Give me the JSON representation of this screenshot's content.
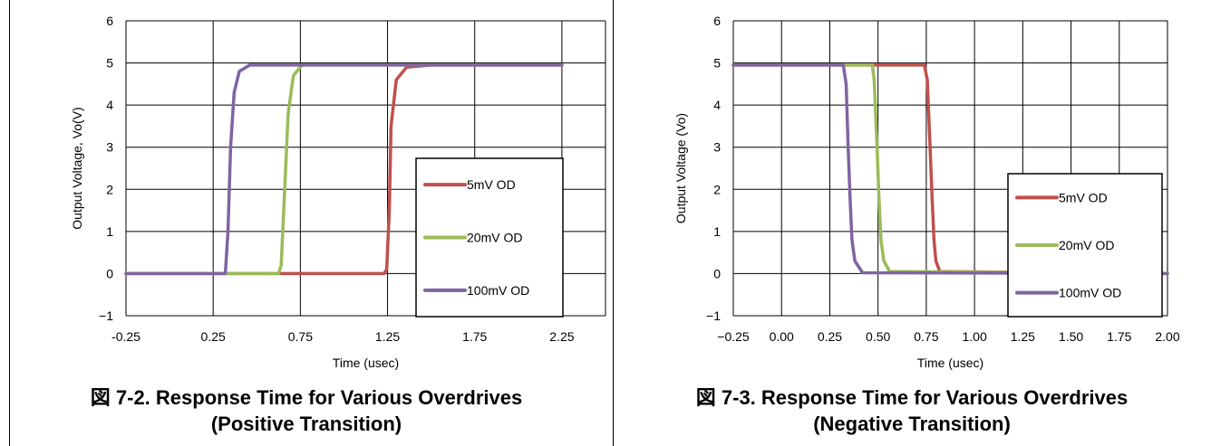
{
  "colors": {
    "series_5mV": "#c0504d",
    "series_20mV": "#9bbb59",
    "series_100mV": "#8064a2",
    "grid": "#000000"
  },
  "chart_data": [
    {
      "type": "line",
      "caption_line1": "図 7-2. Response Time for Various Overdrives",
      "caption_line2": "(Positive Transition)",
      "xlabel": "Time (usec)",
      "ylabel": "Output Voltage, Vo(V)",
      "xlim": [
        -0.25,
        2.5
      ],
      "ylim": [
        -1,
        6
      ],
      "x_ticks": [
        -0.25,
        0.25,
        0.75,
        1.25,
        1.75,
        2.25
      ],
      "x_tick_labels": [
        "-0.25",
        "0.25",
        "0.75",
        "1.25",
        "1.75",
        "2.25"
      ],
      "y_ticks": [
        -1,
        0,
        1,
        2,
        3,
        4,
        5,
        6
      ],
      "y_tick_labels": [
        "−1",
        "0",
        "1",
        "2",
        "3",
        "4",
        "5",
        "6"
      ],
      "grid": true,
      "legend_position": "bottom-right",
      "series": [
        {
          "name": "5mV OD",
          "x": [
            -0.25,
            1.23,
            1.245,
            1.26,
            1.27,
            1.3,
            1.36,
            1.5,
            2.25
          ],
          "y": [
            0,
            0,
            0.1,
            1.5,
            3.5,
            4.6,
            4.9,
            4.95,
            4.95
          ]
        },
        {
          "name": "20mV OD",
          "x": [
            -0.25,
            0.625,
            0.64,
            0.66,
            0.68,
            0.71,
            0.76,
            2.25
          ],
          "y": [
            0,
            0,
            0.2,
            2.0,
            3.8,
            4.7,
            4.95,
            4.95
          ]
        },
        {
          "name": "100mV OD",
          "x": [
            -0.25,
            0.32,
            0.335,
            0.35,
            0.37,
            0.4,
            0.46,
            2.25
          ],
          "y": [
            0,
            0,
            1.0,
            3.0,
            4.3,
            4.8,
            4.95,
            4.95
          ]
        }
      ]
    },
    {
      "type": "line",
      "caption_line1": "図 7-3. Response Time for Various Overdrives",
      "caption_line2": "(Negative Transition)",
      "xlabel": "Time (usec)",
      "ylabel": "Output Voltage (Vo)",
      "xlim": [
        -0.25,
        2.0
      ],
      "ylim": [
        -1,
        6
      ],
      "x_ticks": [
        -0.25,
        0.0,
        0.25,
        0.5,
        0.75,
        1.0,
        1.25,
        1.5,
        1.75,
        2.0
      ],
      "x_tick_labels": [
        "−0.25",
        "0.00",
        "0.25",
        "0.50",
        "0.75",
        "1.00",
        "1.25",
        "1.50",
        "1.75",
        "2.00"
      ],
      "y_ticks": [
        -1,
        0,
        1,
        2,
        3,
        4,
        5,
        6
      ],
      "y_tick_labels": [
        "−1",
        "0",
        "1",
        "2",
        "3",
        "4",
        "5",
        "6"
      ],
      "grid": true,
      "legend_position": "bottom-right",
      "series": [
        {
          "name": "5mV OD",
          "x": [
            -0.25,
            0.74,
            0.755,
            0.77,
            0.78,
            0.79,
            0.8,
            0.82,
            2.0
          ],
          "y": [
            4.95,
            4.95,
            4.6,
            3.0,
            1.8,
            0.8,
            0.3,
            0.05,
            0
          ]
        },
        {
          "name": "20mV OD",
          "x": [
            -0.25,
            0.47,
            0.48,
            0.495,
            0.505,
            0.515,
            0.53,
            0.56,
            2.0
          ],
          "y": [
            4.95,
            4.95,
            4.6,
            3.0,
            1.8,
            0.8,
            0.3,
            0.05,
            0
          ]
        },
        {
          "name": "100mV OD",
          "x": [
            -0.25,
            0.32,
            0.335,
            0.345,
            0.355,
            0.365,
            0.38,
            0.42,
            2.0
          ],
          "y": [
            4.95,
            4.95,
            4.5,
            3.0,
            1.8,
            0.8,
            0.3,
            0.02,
            0
          ]
        }
      ]
    }
  ]
}
